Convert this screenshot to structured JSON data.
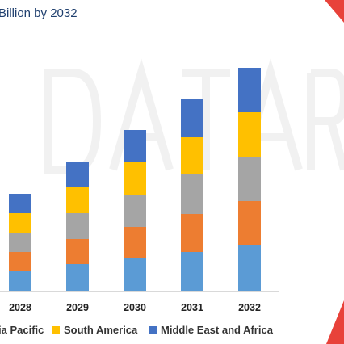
{
  "chart_data": {
    "type": "bar",
    "stacked": true,
    "title": "Billion by 2032",
    "categories": [
      "2028",
      "2029",
      "2030",
      "2031",
      "2032"
    ],
    "series": [
      {
        "name": "",
        "color": "#5b9bd5",
        "values": [
          24,
          33,
          40,
          48,
          56
        ]
      },
      {
        "name": "",
        "color": "#ed7d31",
        "values": [
          24,
          31,
          39,
          47,
          55
        ]
      },
      {
        "name": "",
        "color": "#a5a5a5",
        "values": [
          24,
          32,
          40,
          49,
          55
        ]
      },
      {
        "name": "South America",
        "color": "#ffc000",
        "values": [
          24,
          32,
          40,
          46,
          55
        ]
      },
      {
        "name": "Middle East and Africa",
        "color": "#4472c4",
        "values": [
          24,
          32,
          40,
          47,
          55
        ]
      }
    ],
    "legend_fragment": "ia Pacific",
    "legend_fragment_color": "#a5a5a5",
    "legend_position": "bottom",
    "grid": false
  }
}
